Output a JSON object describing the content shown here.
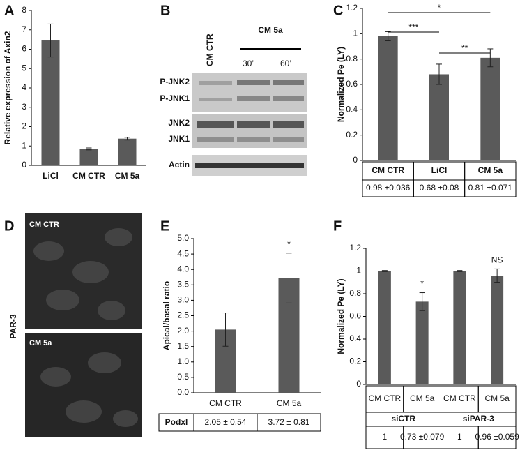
{
  "chart_data": [
    {
      "type": "bar",
      "panel": "A",
      "y_label": "Relative expression of Axin2",
      "categories": [
        "LiCl",
        "CM CTR",
        "CM 5a"
      ],
      "values": [
        6.45,
        0.85,
        1.38
      ],
      "errors": [
        0.85,
        0.05,
        0.07
      ],
      "ylim": [
        0,
        8
      ],
      "yticks": [
        0,
        1,
        2,
        3,
        4,
        5,
        6,
        7,
        8
      ],
      "color": "#5a5a5a"
    },
    {
      "type": "bar",
      "panel": "C",
      "y_label": "Normalized Pe (LY)",
      "categories": [
        "CM CTR",
        "LiCl",
        "CM 5a"
      ],
      "values": [
        0.98,
        0.68,
        0.81
      ],
      "value_labels": [
        "0.98 ±0.036",
        "0.68 ±0.08",
        "0.81 ±0.071"
      ],
      "errors": [
        0.036,
        0.08,
        0.071
      ],
      "ylim": [
        0,
        1.2
      ],
      "yticks": [
        0,
        0.2,
        0.4,
        0.6,
        0.8,
        1,
        1.2
      ],
      "color": "#5a5a5a",
      "significance": [
        {
          "label": "*",
          "between": [
            "CM CTR",
            "CM 5a"
          ]
        },
        {
          "label": "***",
          "between": [
            "CM CTR",
            "LiCl"
          ]
        },
        {
          "label": "**",
          "between": [
            "LiCl",
            "CM 5a"
          ]
        }
      ]
    },
    {
      "type": "bar",
      "panel": "E",
      "y_label": "Apical/basal ratio",
      "row_label": "Podxl",
      "categories": [
        "CM CTR",
        "CM 5a"
      ],
      "values": [
        2.05,
        3.72
      ],
      "value_labels": [
        "2.05 ± 0.54",
        "3.72 ± 0.81"
      ],
      "errors": [
        0.54,
        0.81
      ],
      "annotations": [
        null,
        "*"
      ],
      "ylim": [
        0,
        5
      ],
      "yticks": [
        {
          "value": 0,
          "label": "0.0"
        },
        {
          "value": 0.5,
          "label": "0.5"
        },
        {
          "value": 1,
          "label": "1.0"
        },
        {
          "value": 1.5,
          "label": "1.5"
        },
        {
          "value": 2,
          "label": "2.0"
        },
        {
          "value": 2.5,
          "label": "2.5"
        },
        {
          "value": 3,
          "label": "3.0"
        },
        {
          "value": 3.5,
          "label": "3.5"
        },
        {
          "value": 4,
          "label": "4.0"
        },
        {
          "value": 4.5,
          "label": "4.5"
        },
        {
          "value": 5,
          "label": "5.0"
        }
      ],
      "color": "#5a5a5a"
    },
    {
      "type": "bar",
      "panel": "F",
      "y_label": "Normalized Pe (LY)",
      "categories": [
        "CM CTR",
        "CM 5a",
        "CM CTR",
        "CM 5a"
      ],
      "groups": [
        "siCTR",
        "siPAR-3"
      ],
      "values": [
        1,
        0.73,
        1,
        0.96
      ],
      "value_labels": [
        "1",
        "0.73 ±0.079",
        "1",
        "0.96 ±0.059"
      ],
      "errors": [
        0.005,
        0.079,
        0.005,
        0.059
      ],
      "annotations": [
        null,
        "*",
        null,
        "NS"
      ],
      "ylim": [
        0,
        1.2
      ],
      "yticks": [
        0,
        0.2,
        0.4,
        0.6,
        0.8,
        1,
        1.2
      ],
      "color": "#5a5a5a"
    }
  ],
  "blot": {
    "panel": "B",
    "treatment": "CM 5a",
    "lanes": [
      "CM CTR",
      "30’",
      "60’"
    ],
    "bands": [
      "P-JNK2",
      "P-JNK1",
      "JNK2",
      "JNK1",
      "Actin"
    ]
  },
  "micrographs": {
    "panel": "D",
    "stain": "PAR-3",
    "images": [
      "CM CTR",
      "CM 5a"
    ]
  }
}
